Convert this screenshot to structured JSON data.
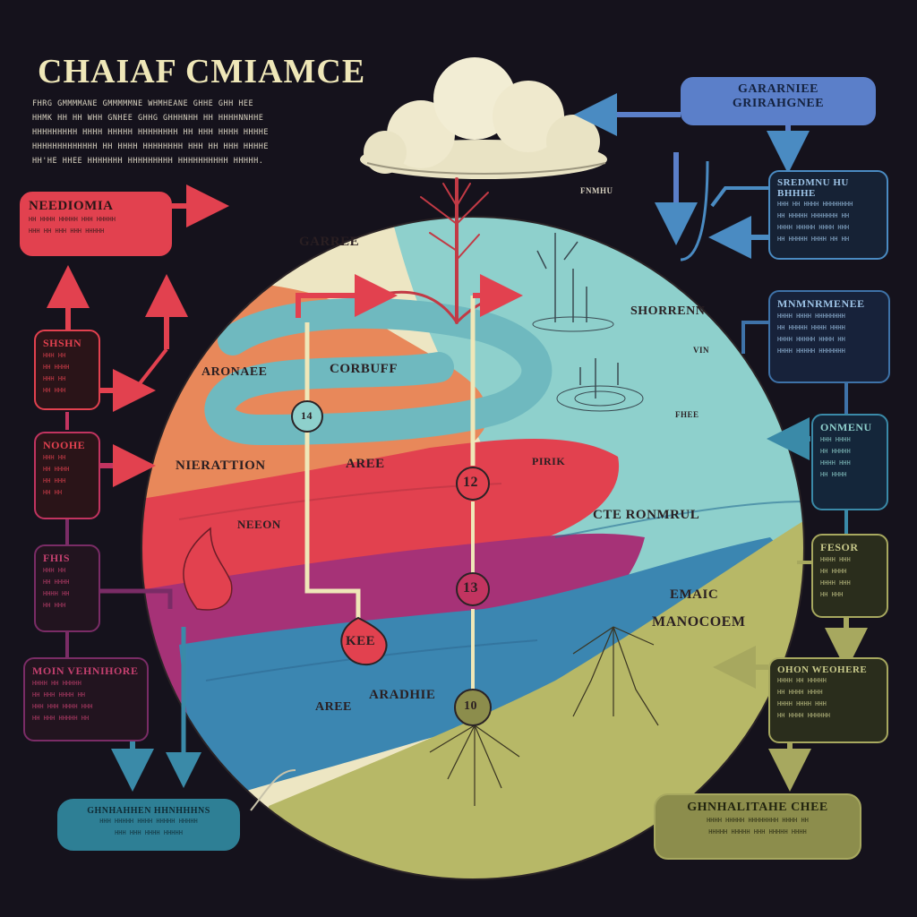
{
  "title": "CHAIAF CMIAMCE",
  "intro_lines": [
    "FHRG GMMMMANE GMMMMMNE WHMHEANE GHHE GHH HEE",
    "HHMK HH HH  WHH GNHEE GHHG GHHHNHH HH HHHHNNHHE",
    "HHHHHHHHH HHHH HHHHH HHHHHHHH HH HHH HHHH HHHHE",
    "HHHHHHHHHHHHH HH HHHH HHHHHHHH HHH HH HHH HHHHE",
    "HH'HE HHEE HHHHHHH HHHHHHHHH HHHHHHHHHH HHHHH."
  ],
  "boxes": [
    {
      "key": "neediomia",
      "title": "NEEDIOMIA",
      "lines": [
        "HH HHHH HHHHH HHH HHHHH",
        "HHH HH HHH HHH HHHHH"
      ]
    },
    {
      "key": "shshn",
      "title": "SHSHN",
      "lines": [
        "HHH HH",
        "HH HHHH",
        "HHH HH",
        "HH HHH"
      ]
    },
    {
      "key": "noohe",
      "title": "NOOHE",
      "lines": [
        "HHH HH",
        "HH HHHH",
        "HH HHH",
        "HH HH"
      ]
    },
    {
      "key": "fhis",
      "title": "FHIS",
      "lines": [
        "HHH HH",
        "HH HHHH",
        "HHHH HH",
        "HH HHH"
      ]
    },
    {
      "key": "moin",
      "title": "MOIN VEHNIHORE",
      "lines": [
        "HHHH HH HHHHH",
        "HH HHH HHHH HH",
        "HHH HHH HHHH HHH",
        "HH HHH HHHHH HH"
      ]
    },
    {
      "key": "bottomleft",
      "title": "GHNHAHHEN HHNHHHNS",
      "lines": [
        "HHH HHHHH HHHH HHHHH HHHHH",
        "HHH HHH HHHH HHHHH"
      ]
    },
    {
      "key": "ganarnee",
      "title": "GARARNIEE",
      "subtitle": "GRIRAHGNEE"
    },
    {
      "key": "sredmnu",
      "title": "SREDMNU HU BHHHE",
      "lines": [
        "HHH HH HHHH HHHHHHHH",
        "HH HHHHH HHHHHHH HH",
        "HHHH HHHHH HHHH HHH",
        "HH HHHHH HHHH HH HH"
      ]
    },
    {
      "key": "mnmnre",
      "title": "MNMNRMENEE",
      "lines": [
        "HHHH HHHH HHHHHHHH",
        "HH HHHHH HHHH HHHH",
        "HHHH HHHHH HHHH HH",
        "HHHH HHHHH HHHHHHH"
      ]
    },
    {
      "key": "onmenu",
      "title": "ONMENU",
      "lines": [
        "HHH HHHH",
        "HH HHHHH",
        "HHHH HHH",
        "HH HHHH"
      ]
    },
    {
      "key": "fesor",
      "title": "FESOR",
      "lines": [
        "HHHH HHH",
        "HH HHHH",
        "HHHH HHH",
        "HH HHH"
      ]
    },
    {
      "key": "oheohe",
      "title": "OHON WEOHERE",
      "lines": [
        "HHHH HH HHHHH",
        "HH HHHH HHHH",
        "HHHH HHHH HHH",
        "HH HHHH HHHHHH"
      ]
    },
    {
      "key": "bottomright",
      "title": "GHNHALITAHE CHEE",
      "lines": [
        "HHHH HHHHH HHHHHHHH HHHH HH",
        "HHHHH HHHHH HHH HHHHH HHHH"
      ]
    }
  ],
  "circle_labels": {
    "garee": "GARREE",
    "aronaee": "ARONAEE",
    "corbuff": "CORBUFF",
    "nierattion": "NIERATTION",
    "aree": "AREE",
    "neon": "NEEON",
    "pirik": "PIRIK",
    "kee": "KEE",
    "cte_ronmrul": "CTE RONMRUL",
    "shorrenn": "SHORRENN",
    "emaic": "EMAIC",
    "manocoem": "MANOCOEM",
    "aree2": "AREE",
    "aradhie": "ARADHIE",
    "vin": "VIN",
    "fhee": "FHEE",
    "fnmhu": "FNMHU"
  },
  "badges": [
    "14",
    "12",
    "13",
    "10"
  ],
  "colors": {
    "background": "#15121c",
    "cream": "#efe7b8",
    "red": "#e2414f",
    "pink": "#c23460",
    "magenta": "#9e2f78",
    "orange": "#e8885a",
    "teal": "#8ed0cc",
    "blue": "#3b86b1",
    "olive": "#b7b867",
    "navy": "#5b7fc9"
  }
}
